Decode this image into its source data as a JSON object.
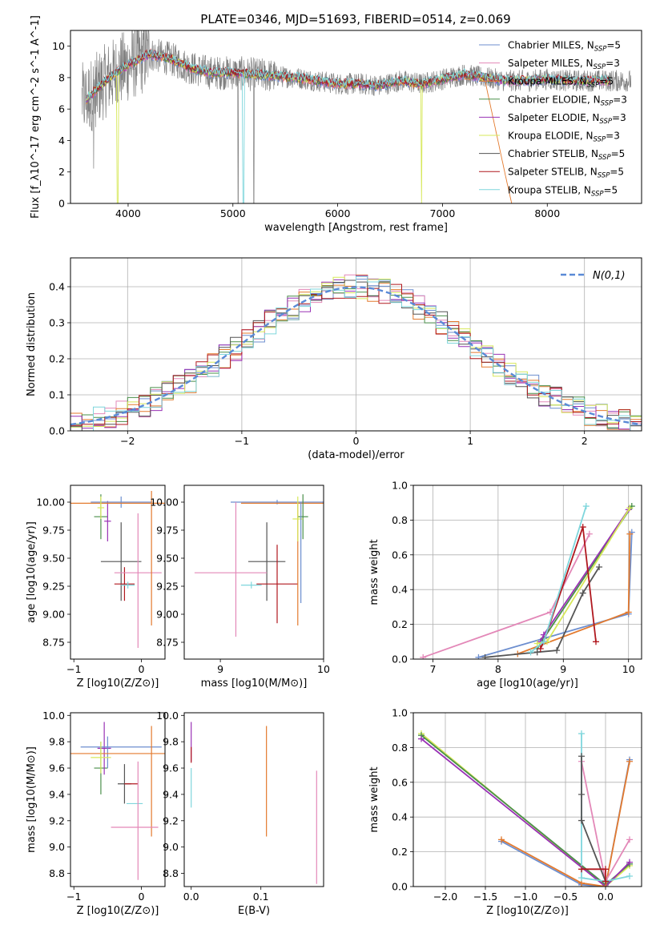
{
  "figure": {
    "title": "PLATE=0346, MJD=51693, FIBERID=0514, z=0.069"
  },
  "chart_data": [
    {
      "id": "spectrum",
      "type": "line",
      "xlabel": "wavelength [Angstrom, rest frame]",
      "ylabel": "Flux [f_λ10^-17 erg cm^-2 s^-1 A^-1]",
      "xlim": [
        3450,
        8900
      ],
      "ylim": [
        0,
        11
      ],
      "xticks": [
        4000,
        5000,
        6000,
        7000,
        8000
      ],
      "yticks": [
        0,
        2,
        4,
        6,
        8,
        10
      ],
      "legend_position": "top-right",
      "legend": [
        {
          "label": "Chabrier MILES, N",
          "sub": "SSP",
          "suffix": "=5",
          "color": "#6c8ecf"
        },
        {
          "label": "Salpeter MILES, N",
          "sub": "SSP",
          "suffix": "=3",
          "color": "#e388b8"
        },
        {
          "label": "Kroupa MILES, N",
          "sub": "SSP",
          "suffix": "=5",
          "color": "#e37a2e"
        },
        {
          "label": "Chabrier ELODIE, N",
          "sub": "SSP",
          "suffix": "=3",
          "color": "#4a8f4a"
        },
        {
          "label": "Salpeter ELODIE, N",
          "sub": "SSP",
          "suffix": "=3",
          "color": "#9932b5"
        },
        {
          "label": "Kroupa ELODIE, N",
          "sub": "SSP",
          "suffix": "=3",
          "color": "#d7e85a"
        },
        {
          "label": "Chabrier STELIB, N",
          "sub": "SSP",
          "suffix": "=5",
          "color": "#555555"
        },
        {
          "label": "Salpeter STELIB, N",
          "sub": "SSP",
          "suffix": "=5",
          "color": "#b0181f"
        },
        {
          "label": "Kroupa STELIB, N",
          "sub": "SSP",
          "suffix": "=5",
          "color": "#7fd6dc"
        }
      ],
      "data_color": "#808080",
      "model_x": [
        3600,
        3800,
        4000,
        4200,
        4400,
        4600,
        4800,
        5000,
        5200,
        5400,
        5600,
        5800,
        6000,
        6200,
        6400,
        6600,
        6800,
        7000,
        7200,
        7400,
        7600,
        7800,
        8000,
        8200,
        8400
      ],
      "model_y": [
        6.6,
        7.9,
        8.8,
        9.5,
        9.2,
        8.6,
        8.3,
        8.3,
        8.2,
        8.1,
        8.0,
        7.8,
        7.6,
        7.6,
        7.5,
        7.8,
        7.6,
        7.9,
        8.2,
        8.0,
        7.8,
        7.8,
        7.9,
        7.8,
        7.8
      ]
    },
    {
      "id": "residuals",
      "type": "line",
      "xlabel": "(data-model)/error",
      "ylabel": "Normed distribution",
      "xlim": [
        -2.5,
        2.5
      ],
      "ylim": [
        0,
        0.48
      ],
      "xticks": [
        -2,
        -1,
        0,
        1,
        2
      ],
      "yticks": [
        0.0,
        0.1,
        0.2,
        0.3,
        0.4
      ],
      "grid": true,
      "legend_label": "N(0,1)",
      "legend_position": "top-right",
      "gaussian_color": "#5a8ad6"
    },
    {
      "id": "age-vs-Z",
      "type": "scatter",
      "xlabel": "Z [log10(Z/Z⊙)]",
      "ylabel": "age  [log10(age/yr)]",
      "xlim": [
        -1.05,
        0.35
      ],
      "ylim": [
        8.6,
        10.15
      ],
      "xticks": [
        -1,
        0
      ],
      "yticks": [
        8.75,
        9.0,
        9.25,
        9.5,
        9.75,
        10.0
      ],
      "points": [
        {
          "x": -0.6,
          "xerr": 0.1,
          "y": 9.87,
          "yerr": 0.2,
          "c": "#4a8f4a"
        },
        {
          "x": -0.5,
          "xerr": 0.05,
          "y": 9.83,
          "yerr": 0.18,
          "c": "#9932b5"
        },
        {
          "x": -0.3,
          "xerr": 0.45,
          "y": 10.0,
          "yerr": 0.05,
          "c": "#6c8ecf"
        },
        {
          "x": -0.3,
          "xerr": 0.3,
          "y": 9.47,
          "yerr": 0.35,
          "c": "#555555"
        },
        {
          "x": -0.25,
          "xerr": 0.15,
          "y": 9.27,
          "yerr": 0.15,
          "c": "#b0181f"
        },
        {
          "x": -0.2,
          "xerr": 0.1,
          "y": 9.26,
          "yerr": 0.03,
          "c": "#7fd6dc"
        },
        {
          "x": -0.05,
          "xerr": 0.35,
          "y": 9.37,
          "yerr": 0.0,
          "c": "#e388b8"
        },
        {
          "x": -0.05,
          "xerr": 0.0,
          "y": 9.3,
          "yerr": 0.6,
          "c": "#e388b8"
        },
        {
          "x": 0.15,
          "xerr": 0.0,
          "y": 9.5,
          "yerr": 0.6,
          "c": "#e37a2e"
        },
        {
          "x": -0.5,
          "xerr": 1.05,
          "y": 9.99,
          "yerr": 0.0,
          "c": "#e37a2e"
        },
        {
          "x": -0.6,
          "xerr": 0.05,
          "y": 9.95,
          "yerr": 0.1,
          "c": "#d7e85a"
        }
      ]
    },
    {
      "id": "age-vs-mass",
      "type": "scatter",
      "xlabel": "mass [log10(M/M⊙)]",
      "ylabel": "",
      "xlim": [
        8.65,
        10.0
      ],
      "ylim": [
        8.6,
        10.15
      ],
      "xticks": [
        9,
        10
      ],
      "yticks": [
        8.75,
        9.0,
        9.25,
        9.5,
        9.75,
        10.0
      ],
      "points": [
        {
          "x": 9.55,
          "xerr": 0.45,
          "y": 10.0,
          "yerr": 0.02,
          "c": "#6c8ecf"
        },
        {
          "x": 9.45,
          "xerr": 0.18,
          "y": 9.47,
          "yerr": 0.35,
          "c": "#555555"
        },
        {
          "x": 9.55,
          "xerr": 0.2,
          "y": 9.27,
          "yerr": 0.35,
          "c": "#b0181f"
        },
        {
          "x": 9.1,
          "xerr": 0.35,
          "y": 9.37,
          "yerr": 0.0,
          "c": "#e388b8"
        },
        {
          "x": 9.15,
          "xerr": 0.0,
          "y": 9.4,
          "yerr": 0.6,
          "c": "#e388b8"
        },
        {
          "x": 9.75,
          "xerr": 0.0,
          "y": 9.45,
          "yerr": 0.55,
          "c": "#e37a2e"
        },
        {
          "x": 9.6,
          "xerr": 0.4,
          "y": 9.99,
          "yerr": 0.0,
          "c": "#e37a2e"
        },
        {
          "x": 9.8,
          "xerr": 0.05,
          "y": 9.87,
          "yerr": 0.2,
          "c": "#4a8f4a"
        },
        {
          "x": 9.75,
          "xerr": 0.05,
          "y": 9.85,
          "yerr": 0.2,
          "c": "#d7e85a"
        },
        {
          "x": 9.3,
          "xerr": 0.1,
          "y": 9.26,
          "yerr": 0.03,
          "c": "#7fd6dc"
        },
        {
          "x": 9.78,
          "xerr": 0.0,
          "y": 9.55,
          "yerr": 0.45,
          "c": "#6c8ecf"
        }
      ]
    },
    {
      "id": "weight-vs-age",
      "type": "line",
      "xlabel": "age  [log10(age/yr)]",
      "ylabel": "mass weight",
      "xlim": [
        6.7,
        10.2
      ],
      "ylim": [
        0,
        1.0
      ],
      "xticks": [
        7,
        8,
        9,
        10
      ],
      "yticks": [
        0.0,
        0.2,
        0.4,
        0.6,
        0.8,
        1.0
      ],
      "grid": true,
      "series": [
        {
          "c": "#e388b8",
          "pts": [
            [
              6.85,
              0.01
            ],
            [
              8.8,
              0.27
            ],
            [
              9.4,
              0.72
            ]
          ]
        },
        {
          "c": "#6c8ecf",
          "pts": [
            [
              7.7,
              0.01
            ],
            [
              10.0,
              0.26
            ],
            [
              10.05,
              0.73
            ]
          ]
        },
        {
          "c": "#e37a2e",
          "pts": [
            [
              8.3,
              0.03
            ],
            [
              10.0,
              0.27
            ],
            [
              10.02,
              0.72
            ]
          ]
        },
        {
          "c": "#4a8f4a",
          "pts": [
            [
              8.6,
              0.06
            ],
            [
              8.7,
              0.12
            ],
            [
              10.05,
              0.88
            ]
          ]
        },
        {
          "c": "#9932b5",
          "pts": [
            [
              8.65,
              0.1
            ],
            [
              8.7,
              0.14
            ],
            [
              10.0,
              0.86
            ]
          ]
        },
        {
          "c": "#d7e85a",
          "pts": [
            [
              8.6,
              0.09
            ],
            [
              8.75,
              0.1
            ],
            [
              10.02,
              0.87
            ]
          ]
        },
        {
          "c": "#555555",
          "pts": [
            [
              7.8,
              0.01
            ],
            [
              8.6,
              0.04
            ],
            [
              8.9,
              0.05
            ],
            [
              9.3,
              0.38
            ],
            [
              9.55,
              0.53
            ]
          ]
        },
        {
          "c": "#b0181f",
          "pts": [
            [
              8.65,
              0.06
            ],
            [
              8.7,
              0.1
            ],
            [
              9.3,
              0.76
            ],
            [
              9.5,
              0.1
            ]
          ]
        },
        {
          "c": "#7fd6dc",
          "pts": [
            [
              8.5,
              0.04
            ],
            [
              8.7,
              0.1
            ],
            [
              9.35,
              0.88
            ]
          ]
        }
      ]
    },
    {
      "id": "mass-vs-Z",
      "type": "scatter",
      "xlabel": "Z [log10(Z/Z⊙)]",
      "ylabel": "mass [log10(M/M⊙)]",
      "xlim": [
        -1.05,
        0.35
      ],
      "ylim": [
        8.7,
        10.02
      ],
      "xticks": [
        -1,
        0
      ],
      "yticks": [
        8.8,
        9.0,
        9.2,
        9.4,
        9.6,
        9.8,
        10.0
      ],
      "points": [
        {
          "x": -0.6,
          "xerr": 0.1,
          "y": 9.6,
          "yerr": 0.2,
          "c": "#4a8f4a"
        },
        {
          "x": -0.55,
          "xerr": 0.1,
          "y": 9.75,
          "yerr": 0.2,
          "c": "#9932b5"
        },
        {
          "x": -0.3,
          "xerr": 0.6,
          "y": 9.76,
          "yerr": 0.0,
          "c": "#6c8ecf"
        },
        {
          "x": -0.5,
          "xerr": 0.0,
          "y": 9.72,
          "yerr": 0.12,
          "c": "#6c8ecf"
        },
        {
          "x": -0.5,
          "xerr": 1.0,
          "y": 9.71,
          "yerr": 0.0,
          "c": "#e37a2e"
        },
        {
          "x": 0.15,
          "xerr": 0.0,
          "y": 9.5,
          "yerr": 0.42,
          "c": "#e37a2e"
        },
        {
          "x": -0.6,
          "xerr": 0.15,
          "y": 9.68,
          "yerr": 0.12,
          "c": "#d7e85a"
        },
        {
          "x": -0.25,
          "xerr": 0.1,
          "y": 9.48,
          "yerr": 0.15,
          "c": "#555555"
        },
        {
          "x": -0.15,
          "xerr": 0.1,
          "y": 9.48,
          "yerr": 0.0,
          "c": "#b0181f"
        },
        {
          "x": -0.1,
          "xerr": 0.12,
          "y": 9.33,
          "yerr": 0.0,
          "c": "#7fd6dc"
        },
        {
          "x": -0.1,
          "xerr": 0.35,
          "y": 9.15,
          "yerr": 0.0,
          "c": "#e388b8"
        },
        {
          "x": -0.05,
          "xerr": 0.0,
          "y": 9.2,
          "yerr": 0.45,
          "c": "#e388b8"
        }
      ]
    },
    {
      "id": "mass-vs-ebv",
      "type": "scatter",
      "xlabel": "E(B-V)",
      "ylabel": "",
      "xlim": [
        -0.01,
        0.19
      ],
      "ylim": [
        8.7,
        10.02
      ],
      "xticks": [
        0.0,
        0.1
      ],
      "yticks": [
        8.8,
        9.0,
        9.2,
        9.4,
        9.6,
        9.8,
        10.0
      ],
      "points": [
        {
          "x": 0.0,
          "xerr": 0.0,
          "y": 9.8,
          "yerr": 0.15,
          "c": "#9932b5"
        },
        {
          "x": 0.0,
          "xerr": 0.0,
          "y": 9.7,
          "yerr": 0.06,
          "c": "#b0181f"
        },
        {
          "x": 0.0,
          "xerr": 0.0,
          "y": 9.45,
          "yerr": 0.15,
          "c": "#7fd6dc"
        },
        {
          "x": 0.108,
          "xerr": 0.0,
          "y": 9.5,
          "yerr": 0.42,
          "c": "#e37a2e"
        },
        {
          "x": 0.18,
          "xerr": 0.0,
          "y": 9.15,
          "yerr": 0.43,
          "c": "#e388b8"
        }
      ]
    },
    {
      "id": "weight-vs-Z",
      "type": "line",
      "xlabel": "Z [log10(Z/Z⊙)]",
      "ylabel": "mass weight",
      "xlim": [
        -2.4,
        0.45
      ],
      "ylim": [
        0,
        1.0
      ],
      "xticks": [
        -2.0,
        -1.5,
        -1.0,
        -0.5,
        0.0
      ],
      "yticks": [
        0.0,
        0.2,
        0.4,
        0.6,
        0.8,
        1.0
      ],
      "grid": true,
      "series": [
        {
          "c": "#d7e85a",
          "pts": [
            [
              -2.3,
              0.88
            ],
            [
              0.0,
              0.0
            ],
            [
              0.3,
              0.12
            ]
          ]
        },
        {
          "c": "#4a8f4a",
          "pts": [
            [
              -2.3,
              0.87
            ],
            [
              0.0,
              0.01
            ],
            [
              0.3,
              0.13
            ]
          ]
        },
        {
          "c": "#9932b5",
          "pts": [
            [
              -2.3,
              0.85
            ],
            [
              0.0,
              0.0
            ],
            [
              0.3,
              0.14
            ]
          ]
        },
        {
          "c": "#6c8ecf",
          "pts": [
            [
              -1.3,
              0.26
            ],
            [
              -0.3,
              0.01
            ],
            [
              0.0,
              0.0
            ],
            [
              0.3,
              0.73
            ]
          ]
        },
        {
          "c": "#e37a2e",
          "pts": [
            [
              -1.3,
              0.27
            ],
            [
              -0.3,
              0.02
            ],
            [
              0.0,
              0.0
            ],
            [
              0.3,
              0.72
            ]
          ]
        },
        {
          "c": "#e388b8",
          "pts": [
            [
              -0.3,
              0.72
            ],
            [
              0.0,
              0.03
            ],
            [
              0.3,
              0.27
            ]
          ]
        },
        {
          "c": "#7fd6dc",
          "pts": [
            [
              -0.3,
              0.88
            ],
            [
              -0.3,
              0.05
            ],
            [
              0.0,
              0.03
            ],
            [
              0.3,
              0.06
            ]
          ]
        },
        {
          "c": "#555555",
          "pts": [
            [
              -0.3,
              0.75
            ],
            [
              -0.3,
              0.53
            ],
            [
              -0.3,
              0.38
            ],
            [
              0.0,
              0.03
            ]
          ]
        },
        {
          "c": "#b0181f",
          "pts": [
            [
              -0.3,
              0.1
            ],
            [
              0.0,
              0.1
            ],
            [
              0.0,
              0.03
            ]
          ]
        }
      ]
    }
  ]
}
